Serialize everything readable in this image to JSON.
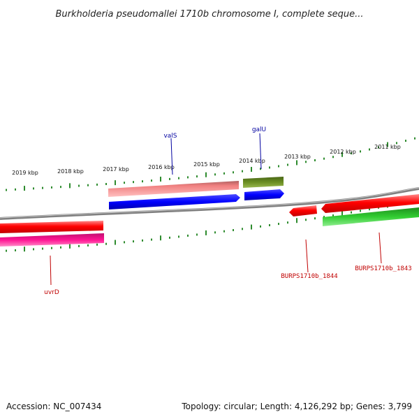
{
  "title": "Burkholderia pseudomallei 1710b chromosome I, complete seque...",
  "footer": {
    "accession": "Accession: NC_007434",
    "summary": "Topology: circular; Length: 4,126,292 bp; Genes: 3,799"
  },
  "ticks": [
    {
      "label": "2019 kbp"
    },
    {
      "label": "2018 kbp"
    },
    {
      "label": "2017 kbp"
    },
    {
      "label": "2016 kbp"
    },
    {
      "label": "2015 kbp"
    },
    {
      "label": "2014 kbp"
    },
    {
      "label": "2013 kbp"
    },
    {
      "label": "2012 kbp"
    },
    {
      "label": "2011 kbp"
    }
  ],
  "genes": [
    {
      "name": "valS",
      "color": "#0000a0"
    },
    {
      "name": "galU",
      "color": "#0000a0"
    },
    {
      "name": "uvrD",
      "color": "#c00000"
    },
    {
      "name": "BURPS1710b_1844",
      "color": "#c00000"
    },
    {
      "name": "BURPS1710b_1843",
      "color": "#c00000"
    }
  ],
  "colors": {
    "backbone": "#808080",
    "tick": "#2e8b2e",
    "cds_forward": "#ff0000",
    "cds_blue": "#0000ff",
    "rna_salmon": "#f08080",
    "olive": "#6b8e23",
    "magenta": "#ff1493",
    "green": "#32cd32"
  }
}
